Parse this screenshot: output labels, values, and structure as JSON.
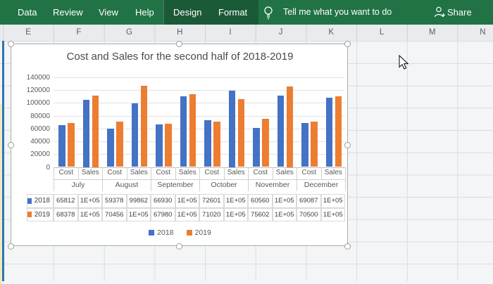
{
  "ribbon": {
    "tabs": [
      {
        "label": "Data"
      },
      {
        "label": "Review"
      },
      {
        "label": "View"
      },
      {
        "label": "Help"
      },
      {
        "label": "Design",
        "contextual": true
      },
      {
        "label": "Format",
        "contextual": true
      }
    ],
    "tell_me": "Tell me what you want to do",
    "share": "Share",
    "icons": {
      "tell_me": "lightbulb-icon",
      "share": "person-plus-icon"
    },
    "colors": {
      "background": "#217346",
      "contextual_background": "#1B5A37"
    }
  },
  "sheet": {
    "columns": [
      "E",
      "F",
      "G",
      "H",
      "I",
      "J",
      "K",
      "L",
      "M",
      "N"
    ]
  },
  "chart_data": {
    "type": "bar",
    "title": "Cost and Sales for the second half of 2018-2019",
    "months": [
      "July",
      "August",
      "September",
      "October",
      "November",
      "December"
    ],
    "sub_categories": [
      "Cost",
      "Sales"
    ],
    "ylim": [
      0,
      140000
    ],
    "ytick_step": 20000,
    "ytick_labels": [
      "140000",
      "120000",
      "100000",
      "80000",
      "60000",
      "40000",
      "20000",
      "0"
    ],
    "grid": true,
    "legend_position": "bottom",
    "data_table_shown": true,
    "series": [
      {
        "name": "2018",
        "color": "#4472C4",
        "values": [
          65812,
          105000,
          59378,
          99862,
          66930,
          110000,
          72601,
          119000,
          60560,
          111000,
          69087,
          108000
        ],
        "table_display": [
          "65812",
          "1E+05",
          "59378",
          "99862",
          "66930",
          "1E+05",
          "72601",
          "1E+05",
          "60560",
          "1E+05",
          "69087",
          "1E+05"
        ]
      },
      {
        "name": "2019",
        "color": "#ED7D31",
        "values": [
          68378,
          112000,
          70456,
          127000,
          67980,
          114000,
          71020,
          106000,
          75602,
          126000,
          70500,
          110000
        ],
        "table_display": [
          "68378",
          "1E+05",
          "70456",
          "1E+05",
          "67980",
          "1E+05",
          "71020",
          "1E+05",
          "75602",
          "1E+05",
          "70500",
          "1E+05"
        ]
      }
    ]
  }
}
